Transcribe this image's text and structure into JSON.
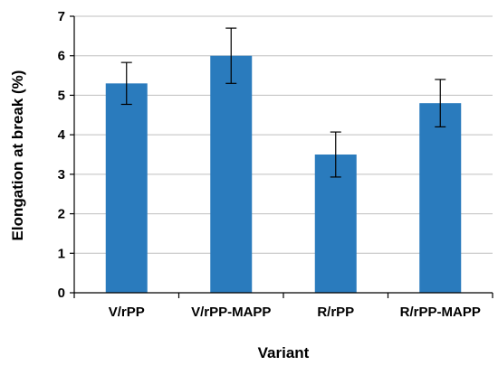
{
  "chart_data": {
    "type": "bar",
    "categories": [
      "V/rPP",
      "V/rPP-MAPP",
      "R/rPP",
      "R/rPP-MAPP"
    ],
    "values": [
      5.3,
      6.0,
      3.5,
      4.8
    ],
    "errors": [
      0.53,
      0.7,
      0.57,
      0.6
    ],
    "xlabel": "Variant",
    "ylabel": "Elongation at break (%)",
    "ylim": [
      0,
      7
    ],
    "yticks": [
      0,
      1,
      2,
      3,
      4,
      5,
      6,
      7
    ],
    "grid": true,
    "legend": "none",
    "bar_color": "#2a7bbd",
    "error_bars": true
  }
}
